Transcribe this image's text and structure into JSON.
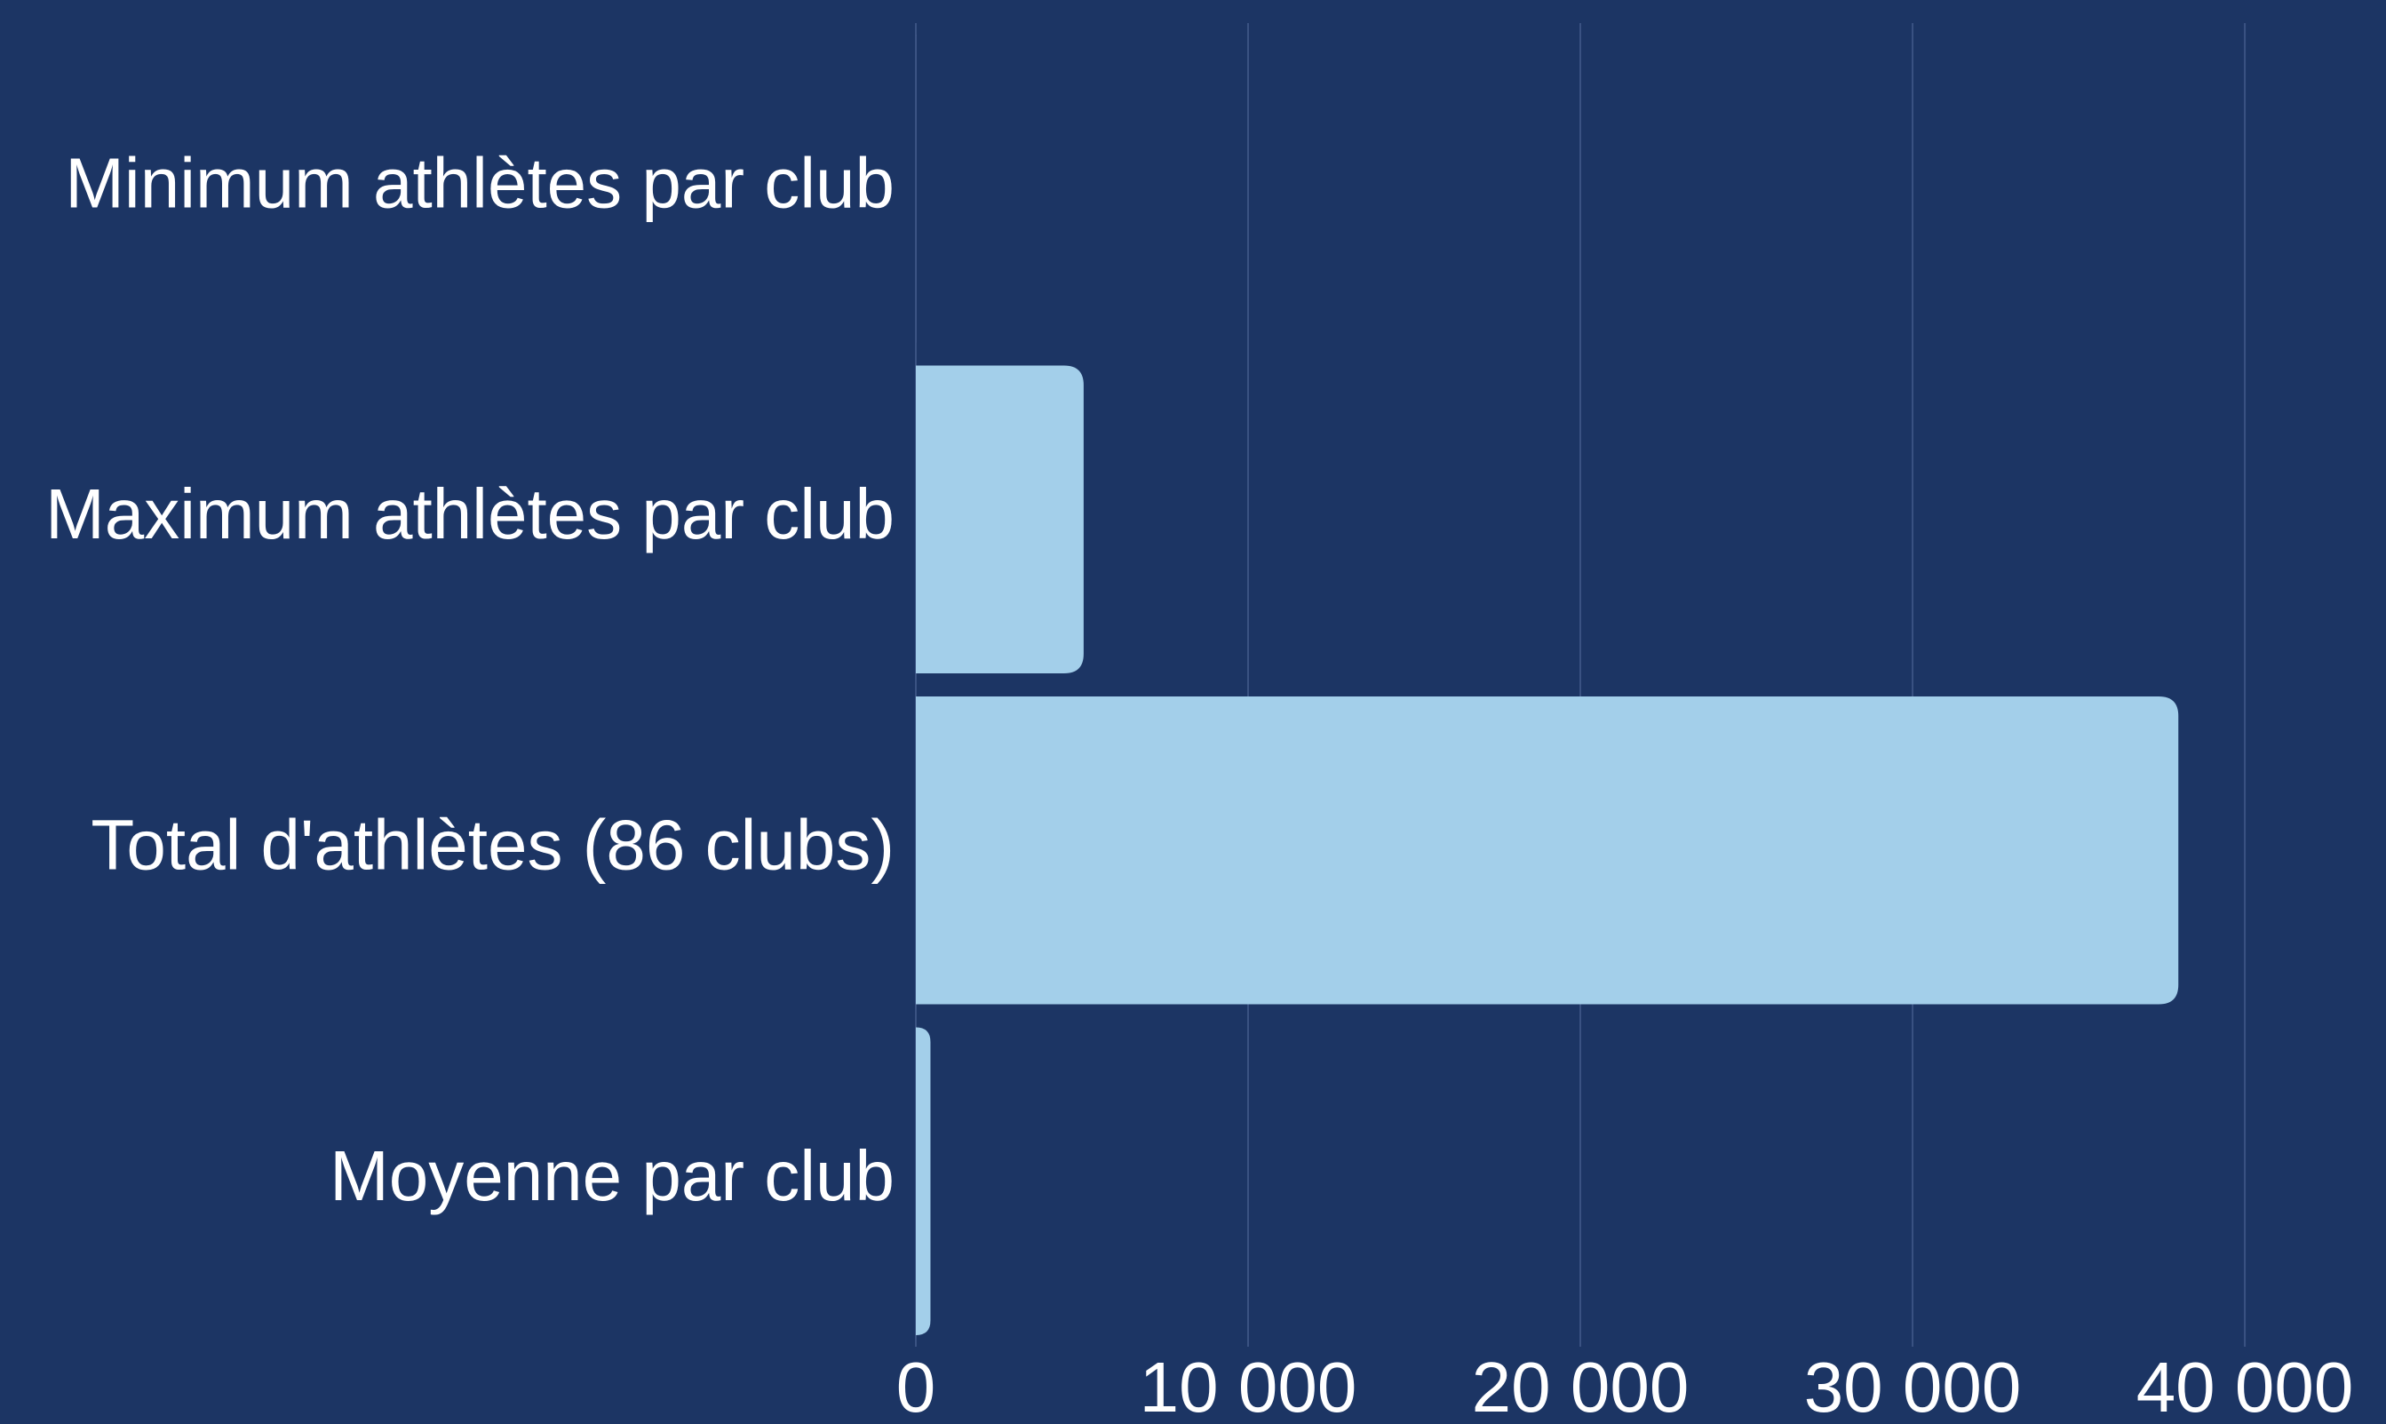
{
  "chart_data": {
    "type": "hbar",
    "categories": [
      "Minimum athlètes par club",
      "Maximum athlètes par club",
      "Total d'athlètes (86 clubs)",
      "Moyenne par club"
    ],
    "values": [
      1,
      5050,
      38000,
      440
    ],
    "color": "#a3cfea",
    "xlim": [
      0,
      44250
    ],
    "xticks": [
      0,
      {
        "value": 10000,
        "label": "10 000"
      },
      {
        "value": 20000,
        "label": "20 000"
      },
      {
        "value": 30000,
        "label": "30 000"
      },
      {
        "value": 40000,
        "label": "40 000"
      }
    ],
    "grid": true
  }
}
